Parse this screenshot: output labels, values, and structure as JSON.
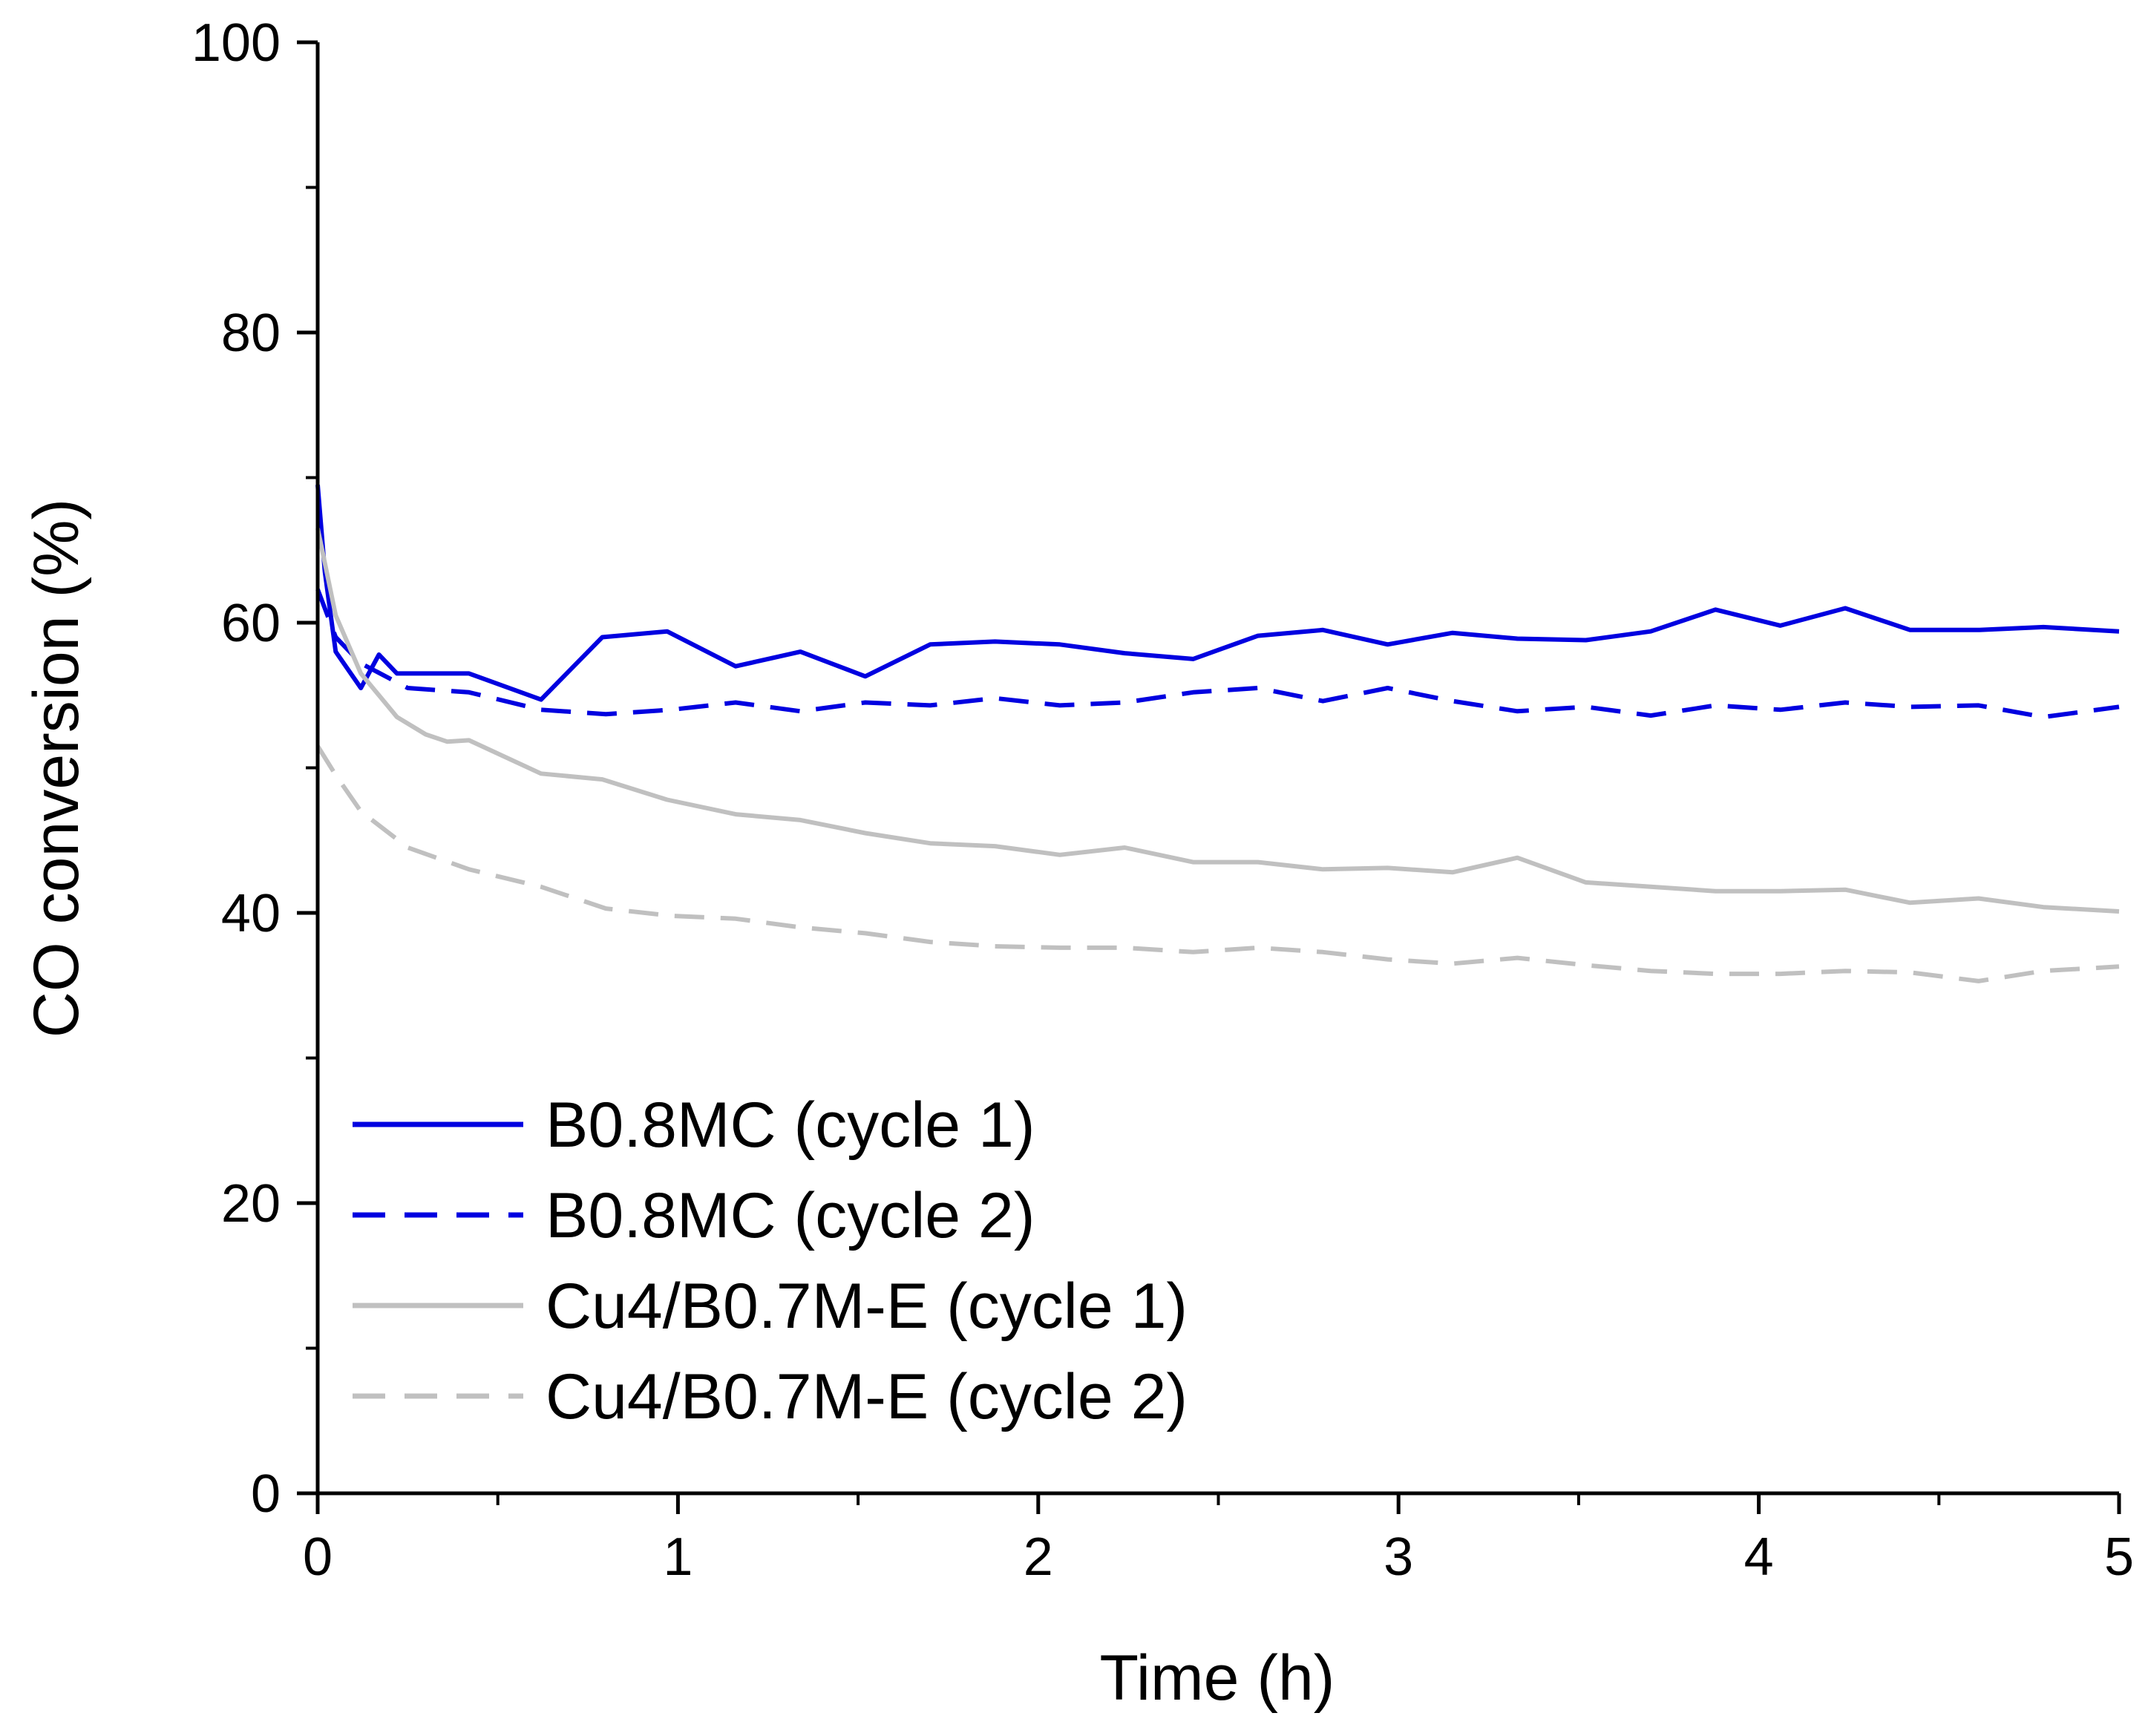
{
  "chart_data": {
    "type": "line",
    "title": "",
    "xlabel": "Time (h)",
    "ylabel": "CO conversion (%)",
    "xlim": [
      0,
      5
    ],
    "ylim": [
      0,
      100
    ],
    "x_ticks": [
      "0",
      "1",
      "2",
      "3",
      "4",
      "5"
    ],
    "y_ticks": [
      "0",
      "20",
      "40",
      "60",
      "80",
      "100"
    ],
    "grid": false,
    "legend_position": "bottom-left",
    "series": [
      {
        "name": "B0.8MC (cycle 1)",
        "color": "#0000e0",
        "dash": "solid",
        "x": [
          0,
          0.02,
          0.05,
          0.12,
          0.17,
          0.22,
          0.42,
          0.62,
          0.79,
          0.97,
          1.16,
          1.34,
          1.52,
          1.7,
          1.88,
          2.06,
          2.24,
          2.43,
          2.61,
          2.79,
          2.97,
          3.15,
          3.33,
          3.52,
          3.7,
          3.88,
          4.06,
          4.24,
          4.42,
          4.61,
          4.79,
          5.0
        ],
        "y": [
          69.5,
          63.5,
          58.0,
          55.5,
          57.8,
          56.5,
          56.5,
          54.7,
          59.0,
          59.4,
          57.0,
          58.0,
          56.3,
          58.5,
          58.7,
          58.5,
          57.9,
          57.5,
          59.1,
          59.5,
          58.5,
          59.3,
          58.9,
          58.8,
          59.4,
          60.9,
          59.8,
          61.0,
          59.5,
          59.5,
          59.7,
          59.4
        ]
      },
      {
        "name": "B0.8MC (cycle 2)",
        "color": "#0000e0",
        "dash": "dashed",
        "x": [
          0,
          0.05,
          0.12,
          0.25,
          0.42,
          0.62,
          0.8,
          0.98,
          1.16,
          1.34,
          1.52,
          1.7,
          1.88,
          2.06,
          2.24,
          2.43,
          2.61,
          2.79,
          2.97,
          3.15,
          3.33,
          3.52,
          3.7,
          3.88,
          4.06,
          4.24,
          4.42,
          4.61,
          4.79,
          5.0
        ],
        "y": [
          62.3,
          59.0,
          57.2,
          55.5,
          55.2,
          54.0,
          53.7,
          54.0,
          54.5,
          53.9,
          54.5,
          54.3,
          54.8,
          54.3,
          54.5,
          55.2,
          55.5,
          54.6,
          55.5,
          54.6,
          53.9,
          54.2,
          53.6,
          54.3,
          54.0,
          54.5,
          54.2,
          54.3,
          53.5,
          54.2
        ]
      },
      {
        "name": "Cu4/B0.7M-E (cycle 1)",
        "color": "#c0c0c0",
        "dash": "solid",
        "x": [
          0,
          0.05,
          0.12,
          0.22,
          0.3,
          0.36,
          0.42,
          0.62,
          0.79,
          0.97,
          1.16,
          1.34,
          1.52,
          1.7,
          1.88,
          2.06,
          2.24,
          2.43,
          2.61,
          2.79,
          2.97,
          3.15,
          3.33,
          3.52,
          3.7,
          3.88,
          4.06,
          4.24,
          4.42,
          4.61,
          4.79,
          5.0
        ],
        "y": [
          66.5,
          60.5,
          56.5,
          53.5,
          52.3,
          51.8,
          51.9,
          49.6,
          49.2,
          47.8,
          46.8,
          46.4,
          45.5,
          44.8,
          44.6,
          44.0,
          44.5,
          43.5,
          43.5,
          43.0,
          43.1,
          42.8,
          43.8,
          42.1,
          41.8,
          41.5,
          41.5,
          41.6,
          40.7,
          41.0,
          40.4,
          40.1
        ]
      },
      {
        "name": "Cu4/B0.7M-E (cycle 2)",
        "color": "#c0c0c0",
        "dash": "dashed",
        "x": [
          0,
          0.05,
          0.12,
          0.25,
          0.42,
          0.62,
          0.8,
          0.98,
          1.16,
          1.34,
          1.52,
          1.7,
          1.88,
          2.06,
          2.24,
          2.43,
          2.61,
          2.79,
          2.97,
          3.15,
          3.33,
          3.52,
          3.7,
          3.88,
          4.06,
          4.24,
          4.42,
          4.61,
          4.79,
          5.0
        ],
        "y": [
          51.5,
          49.5,
          47.0,
          44.5,
          43.0,
          41.8,
          40.3,
          39.8,
          39.6,
          39.0,
          38.6,
          38.0,
          37.7,
          37.6,
          37.6,
          37.3,
          37.6,
          37.3,
          36.8,
          36.5,
          36.9,
          36.4,
          36.0,
          35.8,
          35.8,
          36.0,
          35.9,
          35.3,
          36.0,
          36.3
        ]
      }
    ]
  }
}
